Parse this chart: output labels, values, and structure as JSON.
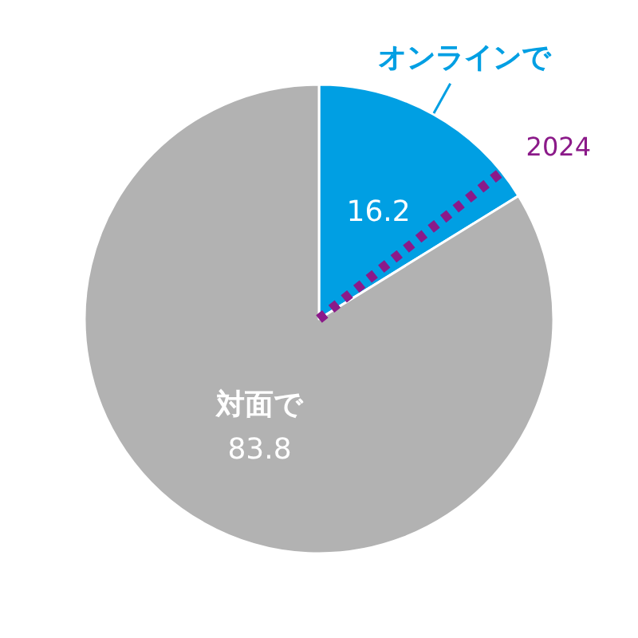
{
  "chart_data": {
    "type": "pie",
    "categories": [
      "オンラインで",
      "対面で"
    ],
    "values": [
      16.2,
      83.8
    ],
    "colors": [
      "#009fe3",
      "#b2b2b2"
    ],
    "needle": "オンラインで",
    "annotations": [
      "2024"
    ],
    "data_labels": true
  }
}
